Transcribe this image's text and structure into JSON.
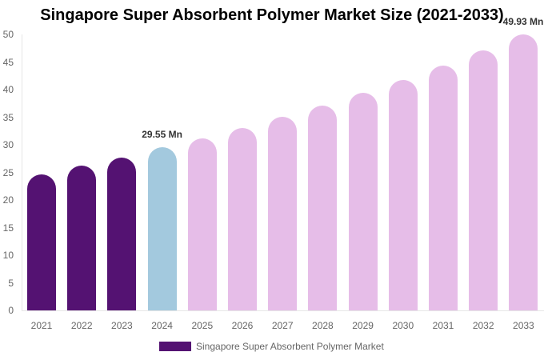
{
  "chart_data": {
    "type": "bar",
    "title": "Singapore Super Absorbent Polymer Market Size (2021-2033)",
    "xlabel": "",
    "ylabel": "",
    "ylim": [
      0,
      50
    ],
    "yticks": [
      0,
      5,
      10,
      15,
      20,
      25,
      30,
      35,
      40,
      45,
      50
    ],
    "grid": false,
    "legend_position": "bottom",
    "categories": [
      "2021",
      "2022",
      "2023",
      "2024",
      "2025",
      "2026",
      "2027",
      "2028",
      "2029",
      "2030",
      "2031",
      "2032",
      "2033"
    ],
    "series": [
      {
        "name": "Singapore Super Absorbent Polymer Market",
        "values": [
          24.6,
          26.2,
          27.7,
          29.55,
          31.2,
          33.0,
          35.1,
          37.1,
          39.4,
          41.7,
          44.3,
          47.1,
          49.93
        ]
      }
    ],
    "bar_colors": [
      "#541272",
      "#541272",
      "#541272",
      "#a3c9de",
      "#e6bde8",
      "#e6bde8",
      "#e6bde8",
      "#e6bde8",
      "#e6bde8",
      "#e6bde8",
      "#e6bde8",
      "#e6bde8",
      "#e6bde8"
    ],
    "annotations": [
      {
        "category": "2024",
        "text": "29.55 Mn"
      },
      {
        "category": "2033",
        "text": "49.93 Mn"
      }
    ]
  },
  "legend": {
    "label": "Singapore Super Absorbent Polymer Market",
    "color": "#541272"
  }
}
